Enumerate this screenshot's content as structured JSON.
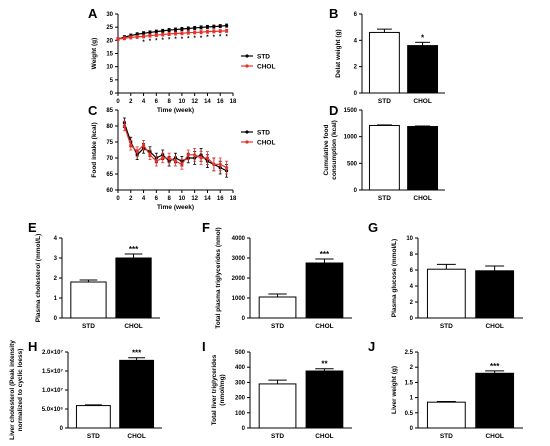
{
  "colors": {
    "std": "#000000",
    "chol": "#e8302a",
    "bar_std": "#ffffff",
    "bar_chol": "#000000"
  },
  "chart_data": [
    {
      "panel": "A",
      "type": "line",
      "xlabel": "Time (week)",
      "ylabel": "Weight (g)",
      "xlim": [
        0,
        18
      ],
      "ylim": [
        0,
        30
      ],
      "xticks": [
        0,
        2,
        4,
        6,
        8,
        10,
        12,
        14,
        16,
        18
      ],
      "yticks": [
        0,
        5,
        10,
        15,
        20,
        25,
        30
      ],
      "legend": "right",
      "x": [
        0,
        1,
        2,
        3,
        4,
        5,
        6,
        7,
        8,
        9,
        10,
        11,
        12,
        13,
        14,
        15,
        16,
        17
      ],
      "series": [
        {
          "name": "STD",
          "color": "#000000",
          "values": [
            20.5,
            21.2,
            21.8,
            22.3,
            22.7,
            23.0,
            23.3,
            23.6,
            23.9,
            24.1,
            24.3,
            24.5,
            24.7,
            24.9,
            25.1,
            25.2,
            25.4,
            25.6
          ],
          "err": [
            0.6,
            0.6,
            0.6,
            0.6,
            0.6,
            0.6,
            0.6,
            0.6,
            0.6,
            0.6,
            0.6,
            0.6,
            0.6,
            0.6,
            0.6,
            0.6,
            0.6,
            0.6
          ]
        },
        {
          "name": "CHOL",
          "color": "#e8302a",
          "values": [
            20.5,
            20.8,
            21.1,
            21.3,
            21.5,
            21.8,
            22.0,
            22.2,
            22.4,
            22.6,
            22.7,
            22.9,
            23.0,
            23.1,
            23.3,
            23.4,
            23.5,
            23.6
          ],
          "err": [
            0.6,
            0.6,
            0.6,
            0.6,
            0.6,
            0.6,
            0.6,
            0.6,
            0.6,
            0.6,
            0.6,
            0.6,
            0.6,
            0.6,
            0.6,
            0.6,
            0.6,
            0.6
          ]
        }
      ],
      "annotations": [
        "*",
        "*",
        "*",
        "*",
        "*",
        "*",
        "*",
        "*",
        "*",
        "*",
        "*",
        "*",
        "*",
        "*"
      ]
    },
    {
      "panel": "B",
      "type": "bar",
      "ylabel": "Delat weight (g)",
      "ylim": [
        0,
        6
      ],
      "yticks": [
        0,
        2,
        4,
        6
      ],
      "categories": [
        "STD",
        "CHOL"
      ],
      "values": [
        4.6,
        3.6
      ],
      "err": [
        0.25,
        0.25
      ],
      "annotations": [
        "",
        "*"
      ]
    },
    {
      "panel": "C",
      "type": "line",
      "xlabel": "Time (week)",
      "ylabel": "Food intake (kcal)",
      "xlim": [
        0,
        18
      ],
      "ylim": [
        60,
        85
      ],
      "xticks": [
        0,
        2,
        4,
        6,
        8,
        10,
        12,
        14,
        16,
        18
      ],
      "yticks": [
        60,
        65,
        70,
        75,
        80,
        85
      ],
      "legend": "right",
      "x": [
        1,
        2,
        3,
        4,
        5,
        6,
        7,
        8,
        9,
        10,
        11,
        12,
        13,
        14,
        15,
        16,
        17
      ],
      "series": [
        {
          "name": "STD",
          "color": "#000000",
          "values": [
            81,
            75,
            71,
            73,
            72,
            70,
            71,
            69,
            70,
            69,
            70,
            70,
            71,
            69,
            68,
            67,
            66
          ],
          "err": [
            1.5,
            1.5,
            1.5,
            1.5,
            1.5,
            1.5,
            1.5,
            1.5,
            1.5,
            1.5,
            1.5,
            2,
            2,
            2,
            2,
            2,
            2
          ]
        },
        {
          "name": "CHOL",
          "color": "#e8302a",
          "values": [
            80,
            74,
            72,
            74,
            71,
            69,
            70,
            70,
            69,
            68,
            71,
            71,
            70,
            70,
            68,
            68,
            67
          ],
          "err": [
            1.5,
            1.5,
            1.5,
            1.5,
            1.5,
            1.5,
            1.5,
            1.5,
            1.5,
            1.5,
            1.5,
            2,
            2,
            2,
            2,
            2,
            2
          ]
        }
      ]
    },
    {
      "panel": "D",
      "type": "bar",
      "ylabel": "Cumulative food consumption (kcal)",
      "ylim": [
        0,
        1500
      ],
      "yticks": [
        0,
        500,
        1000,
        1500
      ],
      "categories": [
        "STD",
        "CHOL"
      ],
      "values": [
        1210,
        1190
      ],
      "err": [
        10,
        10
      ],
      "annotations": [
        "",
        ""
      ]
    },
    {
      "panel": "E",
      "type": "bar",
      "ylabel": "Plasma cholesterol (mmol/L)",
      "ylim": [
        0,
        4
      ],
      "yticks": [
        0,
        1,
        2,
        3,
        4
      ],
      "categories": [
        "STD",
        "CHOL"
      ],
      "values": [
        1.8,
        3.0
      ],
      "err": [
        0.1,
        0.2
      ],
      "annotations": [
        "",
        "***"
      ]
    },
    {
      "panel": "F",
      "type": "bar",
      "ylabel": "Total plasma triglycerides (nmol)",
      "ylim": [
        0,
        4000
      ],
      "yticks": [
        0,
        1000,
        2000,
        3000,
        4000
      ],
      "categories": [
        "STD",
        "CHOL"
      ],
      "values": [
        1050,
        2750
      ],
      "err": [
        150,
        200
      ],
      "annotations": [
        "",
        "***"
      ]
    },
    {
      "panel": "G",
      "type": "bar",
      "ylabel": "Plasma glucose (mmol/L)",
      "ylim": [
        0,
        10
      ],
      "yticks": [
        0,
        2,
        4,
        6,
        8,
        10
      ],
      "categories": [
        "STD",
        "CHOL"
      ],
      "values": [
        6.1,
        5.9
      ],
      "err": [
        0.6,
        0.6
      ],
      "annotations": [
        "",
        ""
      ]
    },
    {
      "panel": "H",
      "type": "bar",
      "ylabel": "Liver cholesterol (Peak intensity normalized to cyclic loess)",
      "ylim": [
        0,
        20000000
      ],
      "yticks": [
        0,
        5000000,
        10000000,
        15000000,
        20000000
      ],
      "ytick_labels": [
        "0",
        "5.0×10⁶",
        "1.0×10⁷",
        "1.5×10⁷",
        "2.0×10⁷"
      ],
      "categories": [
        "STD",
        "CHOL"
      ],
      "values": [
        5900000,
        17800000
      ],
      "err": [
        200000,
        700000
      ],
      "annotations": [
        "",
        "***"
      ]
    },
    {
      "panel": "I",
      "type": "bar",
      "ylabel": "Total liver triglycerides (nmol/mg)",
      "ylim": [
        0,
        500
      ],
      "yticks": [
        0,
        100,
        200,
        300,
        400,
        500
      ],
      "categories": [
        "STD",
        "CHOL"
      ],
      "values": [
        290,
        375
      ],
      "err": [
        25,
        15
      ],
      "annotations": [
        "",
        "**"
      ]
    },
    {
      "panel": "J",
      "type": "bar",
      "ylabel": "Liver weight (g)",
      "ylim": [
        0,
        2.5
      ],
      "yticks": [
        0,
        0.5,
        1.0,
        1.5,
        2.0,
        2.5
      ],
      "categories": [
        "STD",
        "CHOL"
      ],
      "values": [
        0.85,
        1.8
      ],
      "err": [
        0.02,
        0.08
      ],
      "annotations": [
        "",
        "***"
      ]
    }
  ]
}
